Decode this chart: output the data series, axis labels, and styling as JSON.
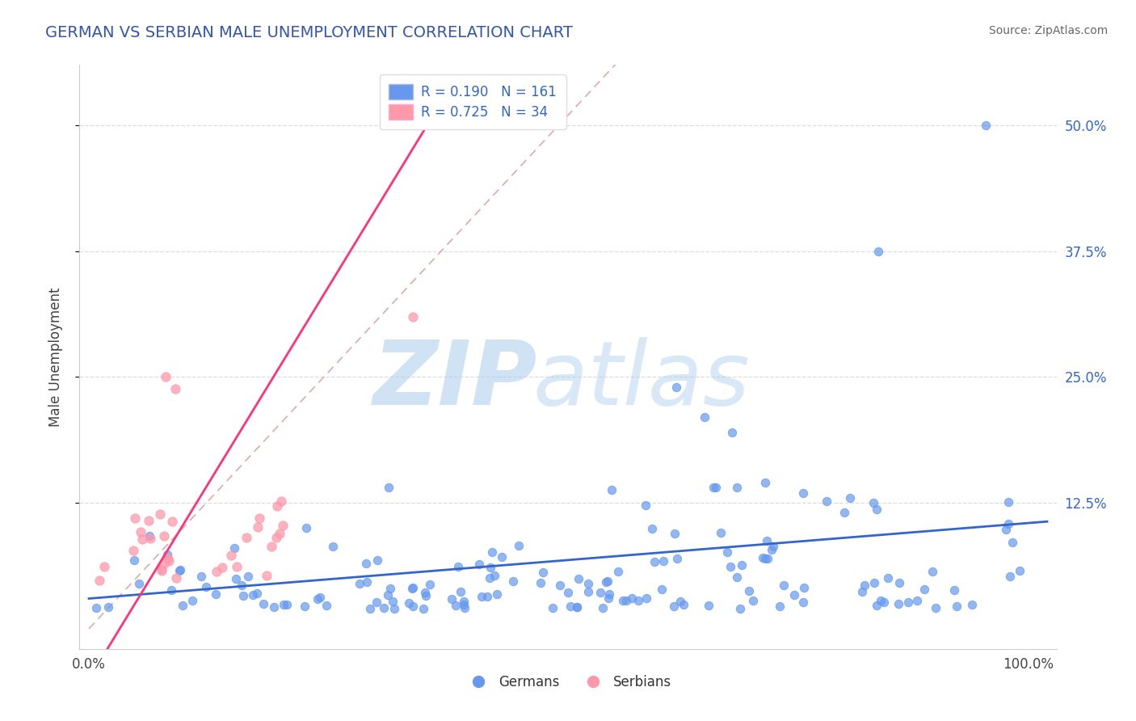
{
  "title": "GERMAN VS SERBIAN MALE UNEMPLOYMENT CORRELATION CHART",
  "source": "Source: ZipAtlas.com",
  "ylabel": "Male Unemployment",
  "title_color": "#3355aa",
  "axis_color": "#3366cc",
  "german_color": "#6699ee",
  "serbian_color": "#ff99aa",
  "german_line_color": "#3366cc",
  "serbian_line_color": "#ff3377",
  "diag_line_color": "#ddaaaa",
  "R_german": 0.19,
  "N_german": 161,
  "R_serbian": 0.725,
  "N_serbian": 34,
  "background_color": "#ffffff",
  "ylim": [
    -0.02,
    0.56
  ],
  "xlim": [
    -0.01,
    1.03
  ]
}
